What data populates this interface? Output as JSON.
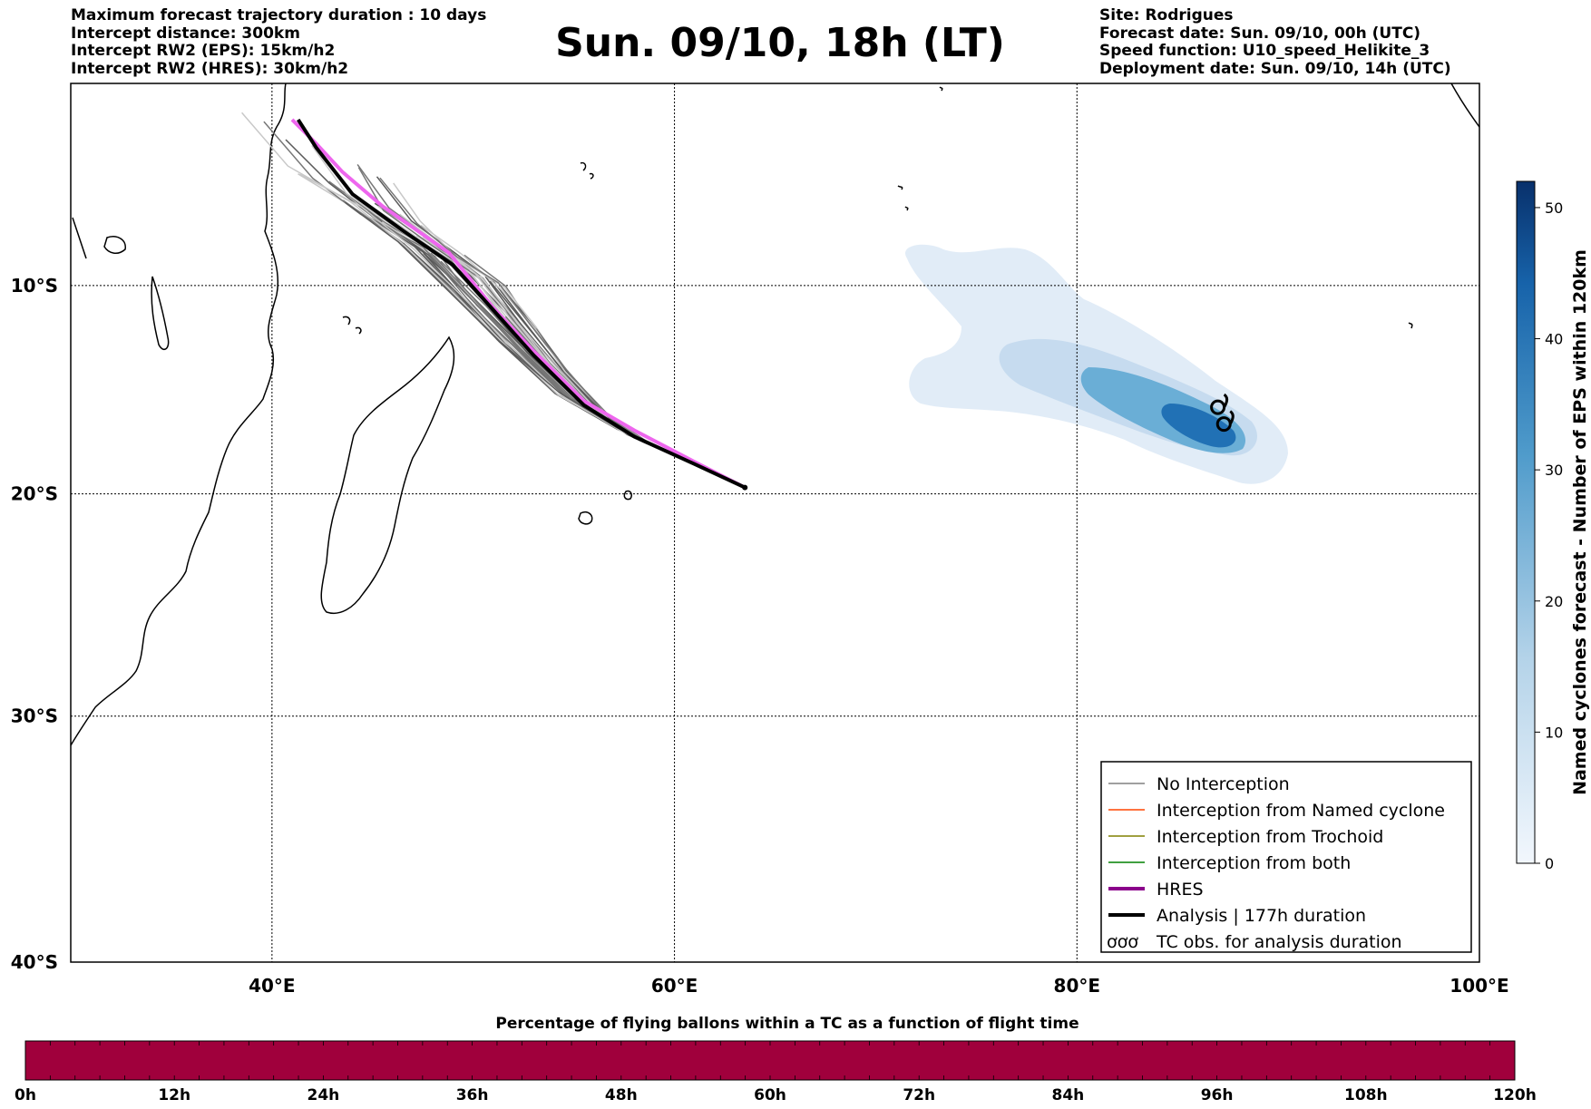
{
  "header_left": [
    "Maximum forecast trajectory duration : 10 days",
    "Intercept distance: 300km",
    "Intercept RW2 (EPS):  15km/h2",
    "Intercept RW2 (HRES): 30km/h2"
  ],
  "header_right": [
    "Site: Rodrigues",
    "Forecast date: Sun. 09/10, 00h (UTC)",
    "Speed function: U10_speed_Helikite_3",
    "Deployment date: Sun. 09/10, 14h (UTC)"
  ],
  "title": "Sun. 09/10, 18h (LT)",
  "map": {
    "lon_range": [
      30,
      100
    ],
    "lat_range": [
      -40,
      0
    ],
    "lon_ticks": [
      {
        "value": 40,
        "label": "40°E"
      },
      {
        "value": 60,
        "label": "60°E"
      },
      {
        "value": 80,
        "label": "80°E"
      },
      {
        "value": 100,
        "label": "100°E"
      }
    ],
    "lat_ticks": [
      {
        "value": -10,
        "label": "10°S"
      },
      {
        "value": -20,
        "label": "20°S"
      },
      {
        "value": -30,
        "label": "30°S"
      },
      {
        "value": -40,
        "label": "40°S"
      }
    ],
    "grid": true
  },
  "trajectories": {
    "launch_point": [
      63.5,
      -19.7
    ],
    "analysis_path": [
      [
        63.5,
        -19.7
      ],
      [
        61,
        -18.6
      ],
      [
        58,
        -17.3
      ],
      [
        55.5,
        -15.8
      ],
      [
        53,
        -13.4
      ],
      [
        51,
        -11.2
      ],
      [
        49,
        -9
      ],
      [
        46.5,
        -7.3
      ],
      [
        44,
        -5.5
      ],
      [
        42.2,
        -3.2
      ],
      [
        41.3,
        -1.8
      ]
    ],
    "hres_path": [
      [
        63.5,
        -19.7
      ],
      [
        61,
        -18.5
      ],
      [
        58,
        -17
      ],
      [
        55.5,
        -15.6
      ],
      [
        53,
        -13.2
      ],
      [
        51,
        -11.1
      ],
      [
        48.8,
        -8.4
      ],
      [
        45.5,
        -6.1
      ],
      [
        43.5,
        -4.4
      ],
      [
        42.2,
        -3
      ],
      [
        41,
        -1.8
      ]
    ],
    "ensemble_count": 50
  },
  "cyclone_density": {
    "center": [
      87.3,
      -17.2
    ],
    "max": 50
  },
  "tc_obs": [
    [
      87,
      -15.9
    ],
    [
      87.3,
      -16.7
    ]
  ],
  "legend": [
    {
      "label": "No Interception",
      "color": "#808080",
      "width": 1.5
    },
    {
      "label": "Interception from Named cyclone",
      "color": "#ff4500",
      "width": 1.5
    },
    {
      "label": "Interception from Trochoid",
      "color": "#808000",
      "width": 1.5
    },
    {
      "label": "Interception from both",
      "color": "#008000",
      "width": 1.5
    },
    {
      "label": "HRES",
      "color": "#8b008b",
      "width": 4
    },
    {
      "label": "Analysis | 177h duration",
      "color": "#000000",
      "width": 4
    },
    {
      "label": "TC obs. for analysis duration",
      "icon": "ơơơ"
    }
  ],
  "colorbar": {
    "label": "Named cyclones forecast - Number of EPS within 120km",
    "min": 0,
    "max": 52,
    "ticks": [
      0,
      10,
      20,
      30,
      40,
      50
    ],
    "color_low": "#e6eff9",
    "color_high": "#08306b"
  },
  "flight_bar": {
    "title": "Percentage of flying ballons within a TC as a function of flight time",
    "color": "#a0003c",
    "ticks": [
      "0h",
      "12h",
      "24h",
      "36h",
      "48h",
      "60h",
      "72h",
      "84h",
      "96h",
      "108h",
      "120h"
    ]
  }
}
